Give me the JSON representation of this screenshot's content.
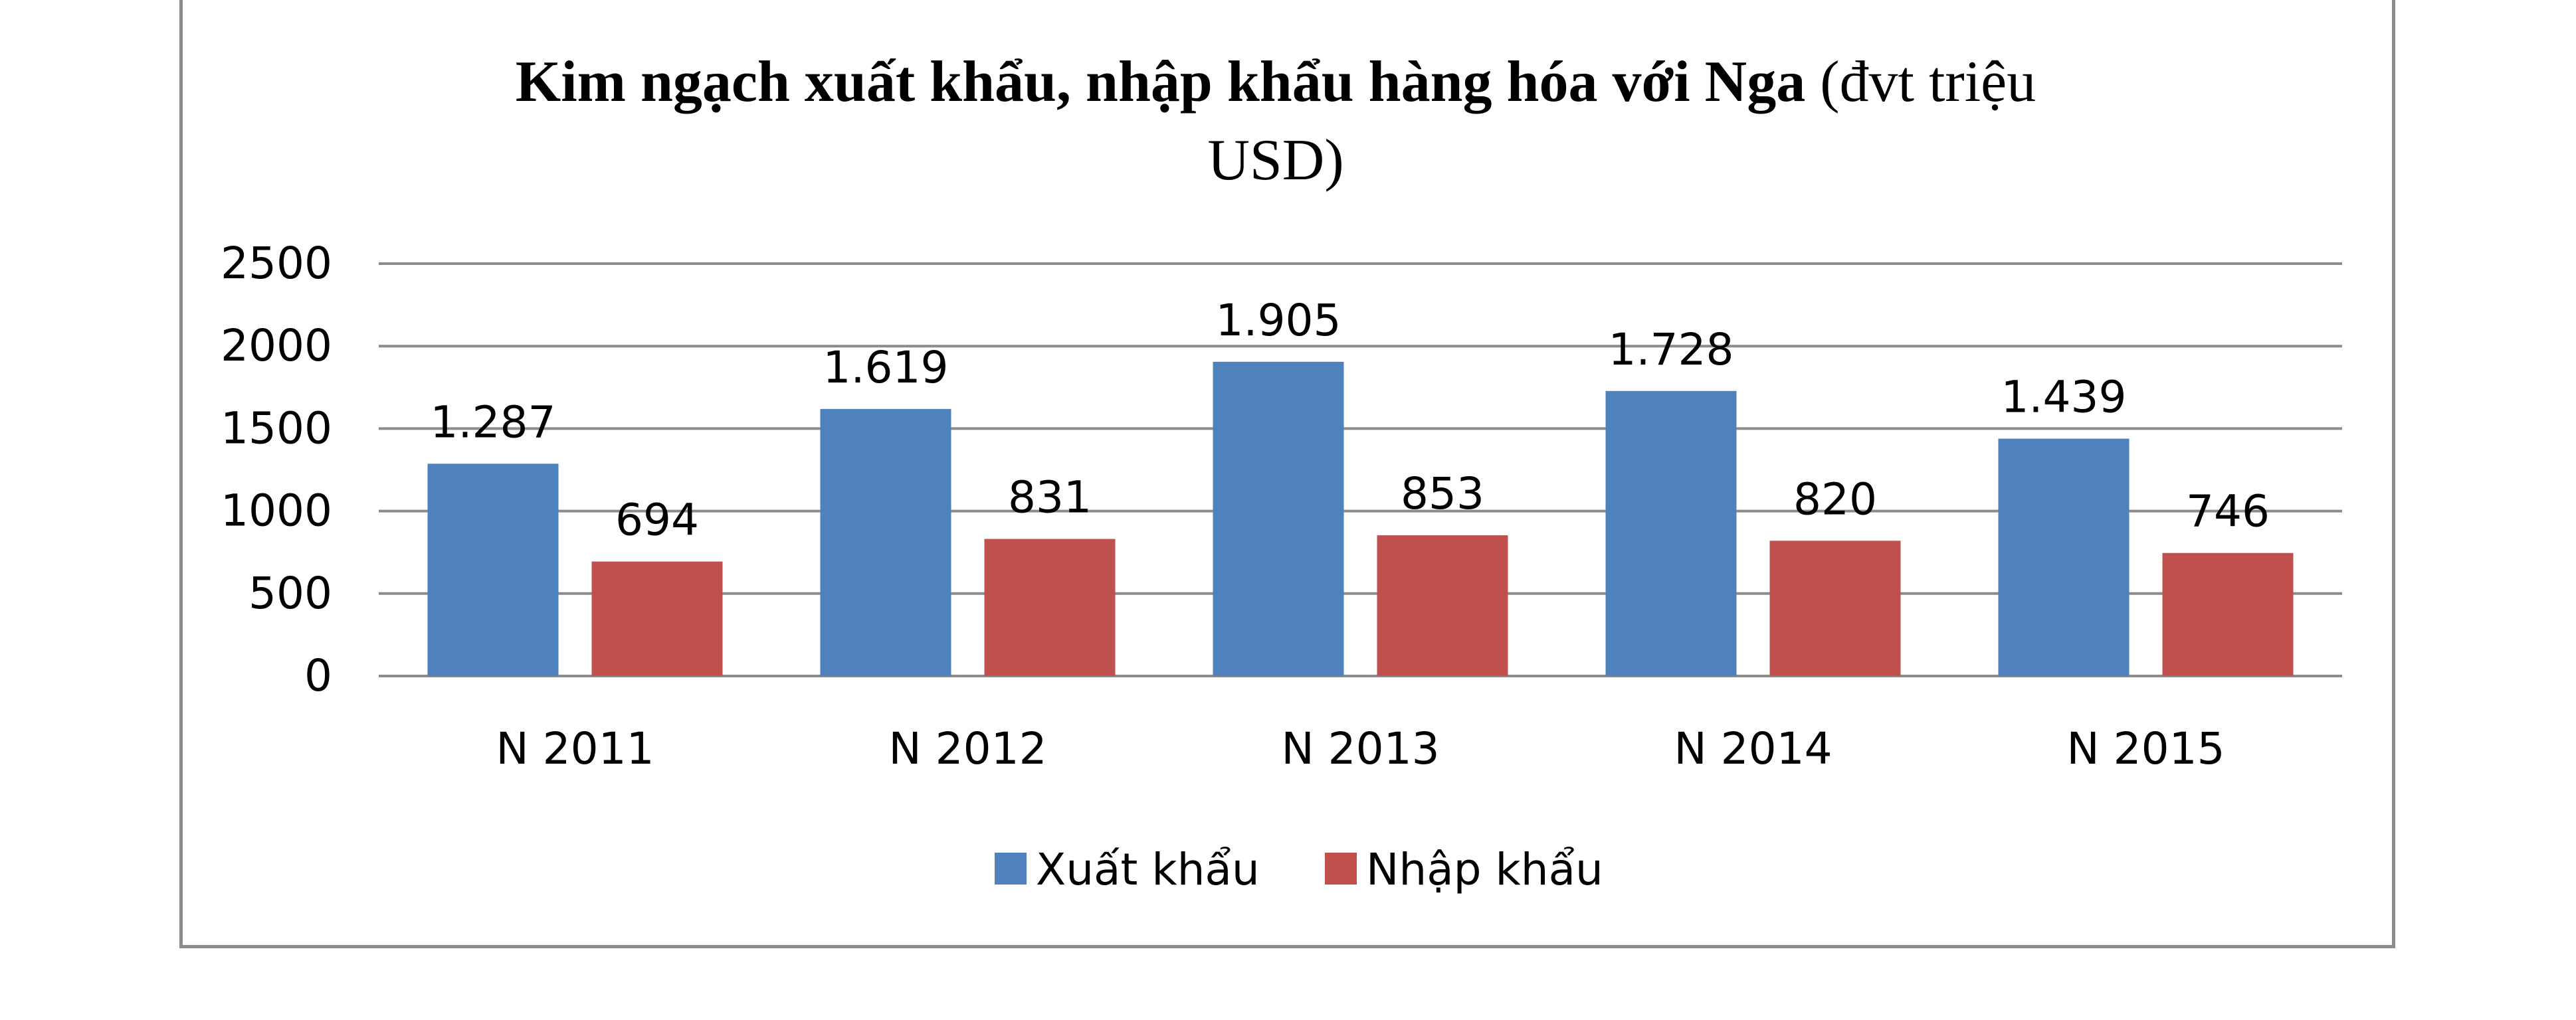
{
  "chart_data": {
    "type": "bar",
    "title_bold": "Kim ngạch xuất khẩu, nhập khẩu hàng hóa với Nga",
    "title_normal_line1": " (đvt triệu",
    "title_normal_line2": "USD)",
    "categories": [
      "N 2011",
      "N 2012",
      "N 2013",
      "N 2014",
      "N 2015"
    ],
    "series": [
      {
        "name": "Xuất khẩu",
        "color": "#4f81bd",
        "values": [
          1287,
          1619,
          1905,
          1728,
          1439
        ],
        "labels": [
          "1.287",
          "1.619",
          "1.905",
          "1.728",
          "1.439"
        ]
      },
      {
        "name": "Nhập khẩu",
        "color": "#c0504d",
        "values": [
          694,
          831,
          853,
          820,
          746
        ],
        "labels": [
          "694",
          "831",
          "853",
          "820",
          "746"
        ]
      }
    ],
    "ylim": [
      0,
      2500
    ],
    "yticks": [
      "0",
      "500",
      "1000",
      "1500",
      "2000",
      "2500"
    ],
    "grid": true,
    "legend": "bottom"
  }
}
